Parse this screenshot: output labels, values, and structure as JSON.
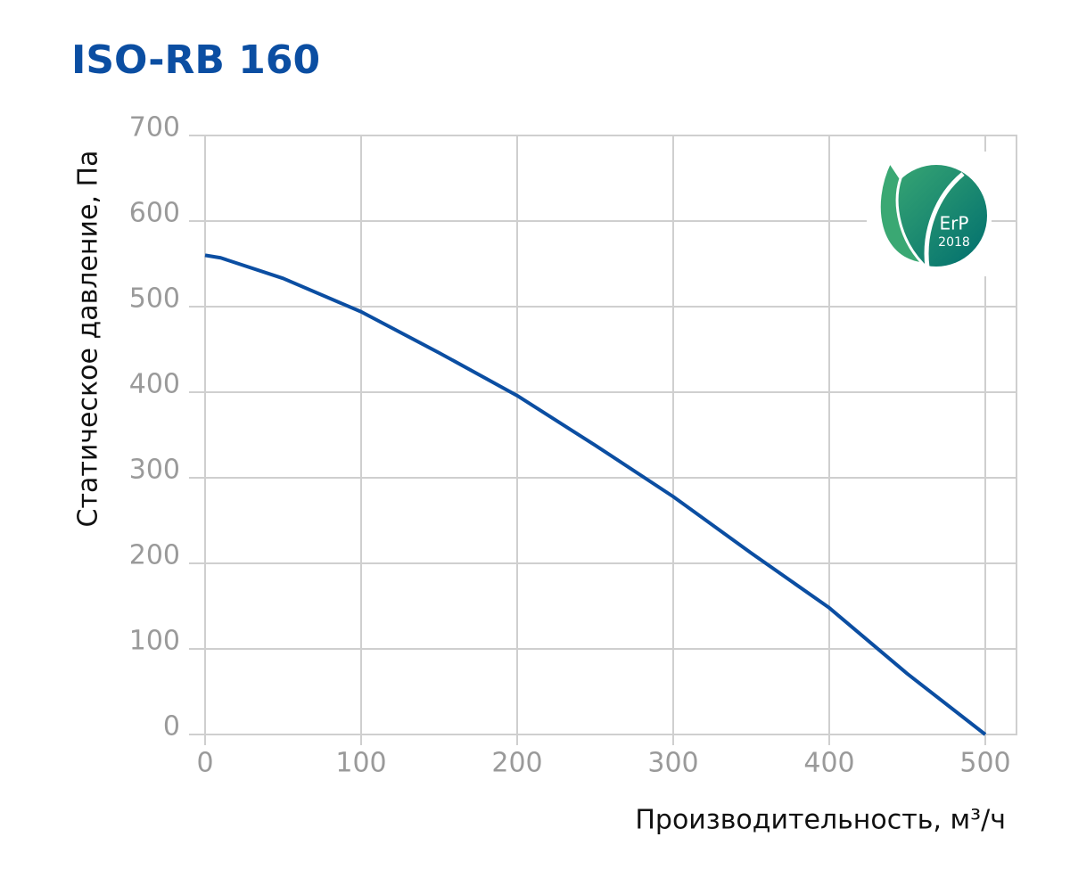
{
  "chart_data": {
    "type": "line",
    "title": "ISO-RB 160",
    "x_label": "Производительность, м³/ч",
    "y_label": "Статическое давление, Па",
    "x": [
      0,
      10,
      50,
      100,
      150,
      200,
      250,
      300,
      350,
      400,
      450,
      500
    ],
    "series": [
      {
        "name": "ISO-RB 160",
        "color": "#0b4ea2",
        "values": [
          560,
          557,
          533,
          494,
          446,
          396,
          338,
          278,
          212,
          148,
          71,
          0
        ]
      }
    ],
    "xlim": [
      0,
      520
    ],
    "ylim": [
      0,
      700
    ],
    "xticks": [
      0,
      100,
      200,
      300,
      400,
      500
    ],
    "yticks": [
      0,
      100,
      200,
      300,
      400,
      500,
      600,
      700
    ],
    "grid": true,
    "annotations": [
      "ErP",
      "2018"
    ]
  }
}
